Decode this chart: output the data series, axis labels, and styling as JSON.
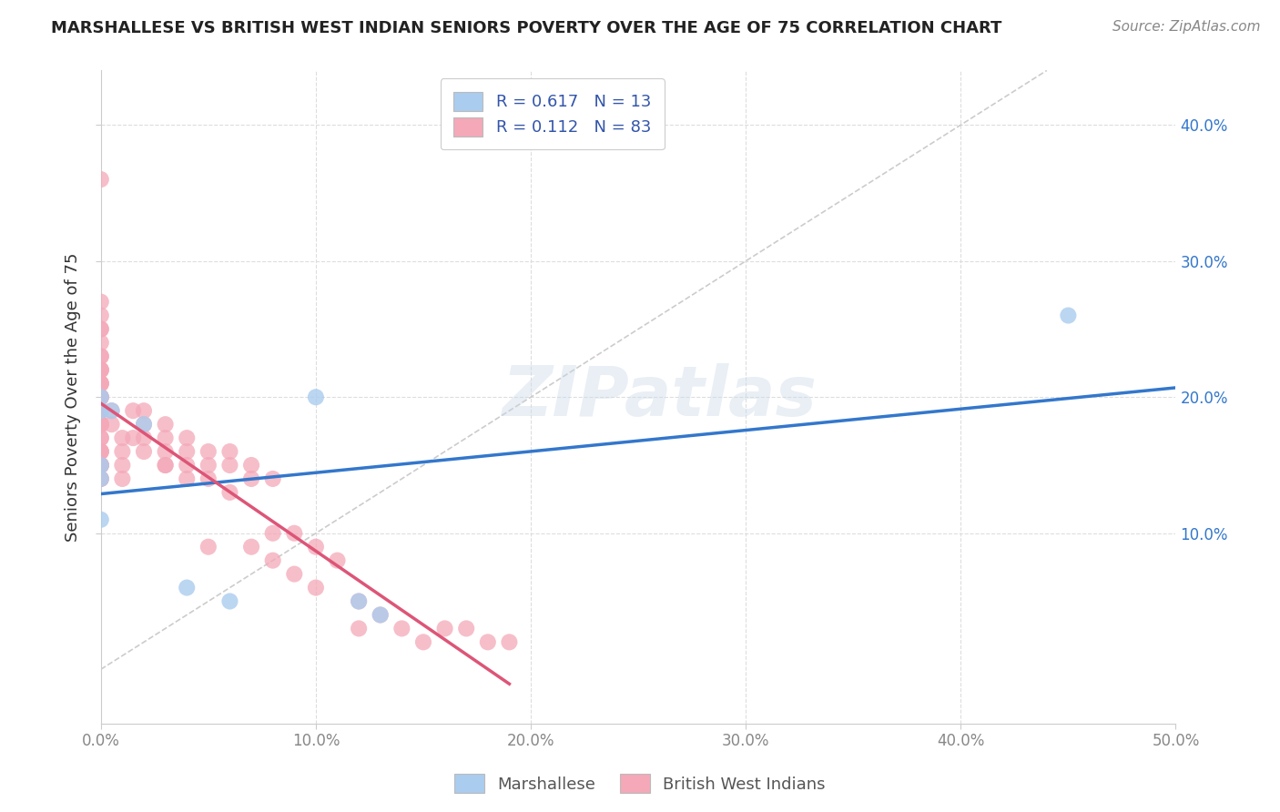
{
  "title": "MARSHALLESE VS BRITISH WEST INDIAN SENIORS POVERTY OVER THE AGE OF 75 CORRELATION CHART",
  "source": "Source: ZipAtlas.com",
  "ylabel": "Seniors Poverty Over the Age of 75",
  "xlim": [
    0.0,
    0.5
  ],
  "ylim": [
    -0.04,
    0.44
  ],
  "ytick_positions": [
    0.1,
    0.2,
    0.3,
    0.4
  ],
  "ytick_labels": [
    "10.0%",
    "20.0%",
    "30.0%",
    "40.0%"
  ],
  "xtick_positions": [
    0.0,
    0.1,
    0.2,
    0.3,
    0.4,
    0.5
  ],
  "xtick_labels": [
    "0.0%",
    "10.0%",
    "20.0%",
    "30.0%",
    "40.0%",
    "50.0%"
  ],
  "legend_labels": [
    "Marshallese",
    "British West Indians"
  ],
  "marshallese_color": "#aaccee",
  "british_color": "#f4a8b8",
  "marshallese_line_color": "#3377cc",
  "british_line_color": "#dd5577",
  "ref_line_color": "#cccccc",
  "R_marshallese": 0.617,
  "N_marshallese": 13,
  "R_british": 0.112,
  "N_british": 83,
  "legend_text_color": "#3355aa",
  "watermark": "ZIPatlas",
  "grid_color": "#dddddd",
  "title_color": "#222222",
  "source_color": "#888888",
  "ylabel_color": "#333333",
  "tick_color": "#888888",
  "right_tick_color": "#3377cc",
  "marshallese_x": [
    0.0,
    0.0,
    0.0,
    0.0,
    0.0,
    0.005,
    0.02,
    0.04,
    0.06,
    0.1,
    0.12,
    0.13,
    0.45
  ],
  "marshallese_y": [
    0.2,
    0.19,
    0.14,
    0.15,
    0.11,
    0.19,
    0.18,
    0.06,
    0.05,
    0.2,
    0.05,
    0.04,
    0.26
  ],
  "british_x": [
    0.0,
    0.0,
    0.0,
    0.0,
    0.0,
    0.0,
    0.0,
    0.0,
    0.0,
    0.0,
    0.0,
    0.0,
    0.0,
    0.0,
    0.0,
    0.0,
    0.0,
    0.0,
    0.0,
    0.0,
    0.0,
    0.0,
    0.0,
    0.0,
    0.0,
    0.0,
    0.0,
    0.0,
    0.0,
    0.0,
    0.0,
    0.0,
    0.0,
    0.0,
    0.0,
    0.005,
    0.005,
    0.01,
    0.01,
    0.01,
    0.01,
    0.015,
    0.015,
    0.02,
    0.02,
    0.02,
    0.02,
    0.03,
    0.03,
    0.03,
    0.03,
    0.03,
    0.04,
    0.04,
    0.04,
    0.04,
    0.05,
    0.05,
    0.05,
    0.05,
    0.06,
    0.06,
    0.06,
    0.07,
    0.07,
    0.07,
    0.08,
    0.08,
    0.08,
    0.09,
    0.09,
    0.1,
    0.1,
    0.11,
    0.12,
    0.12,
    0.13,
    0.14,
    0.15,
    0.16,
    0.17,
    0.18,
    0.19
  ],
  "british_y": [
    0.36,
    0.27,
    0.26,
    0.25,
    0.25,
    0.24,
    0.23,
    0.23,
    0.22,
    0.22,
    0.22,
    0.21,
    0.21,
    0.21,
    0.2,
    0.2,
    0.2,
    0.19,
    0.19,
    0.19,
    0.18,
    0.18,
    0.18,
    0.18,
    0.17,
    0.17,
    0.16,
    0.16,
    0.16,
    0.15,
    0.15,
    0.15,
    0.15,
    0.14,
    0.14,
    0.19,
    0.18,
    0.16,
    0.17,
    0.15,
    0.14,
    0.19,
    0.17,
    0.17,
    0.16,
    0.19,
    0.18,
    0.17,
    0.16,
    0.18,
    0.15,
    0.15,
    0.17,
    0.16,
    0.15,
    0.14,
    0.16,
    0.15,
    0.14,
    0.09,
    0.16,
    0.15,
    0.13,
    0.15,
    0.14,
    0.09,
    0.14,
    0.1,
    0.08,
    0.1,
    0.07,
    0.09,
    0.06,
    0.08,
    0.05,
    0.03,
    0.04,
    0.03,
    0.02,
    0.03,
    0.03,
    0.02,
    0.02
  ]
}
